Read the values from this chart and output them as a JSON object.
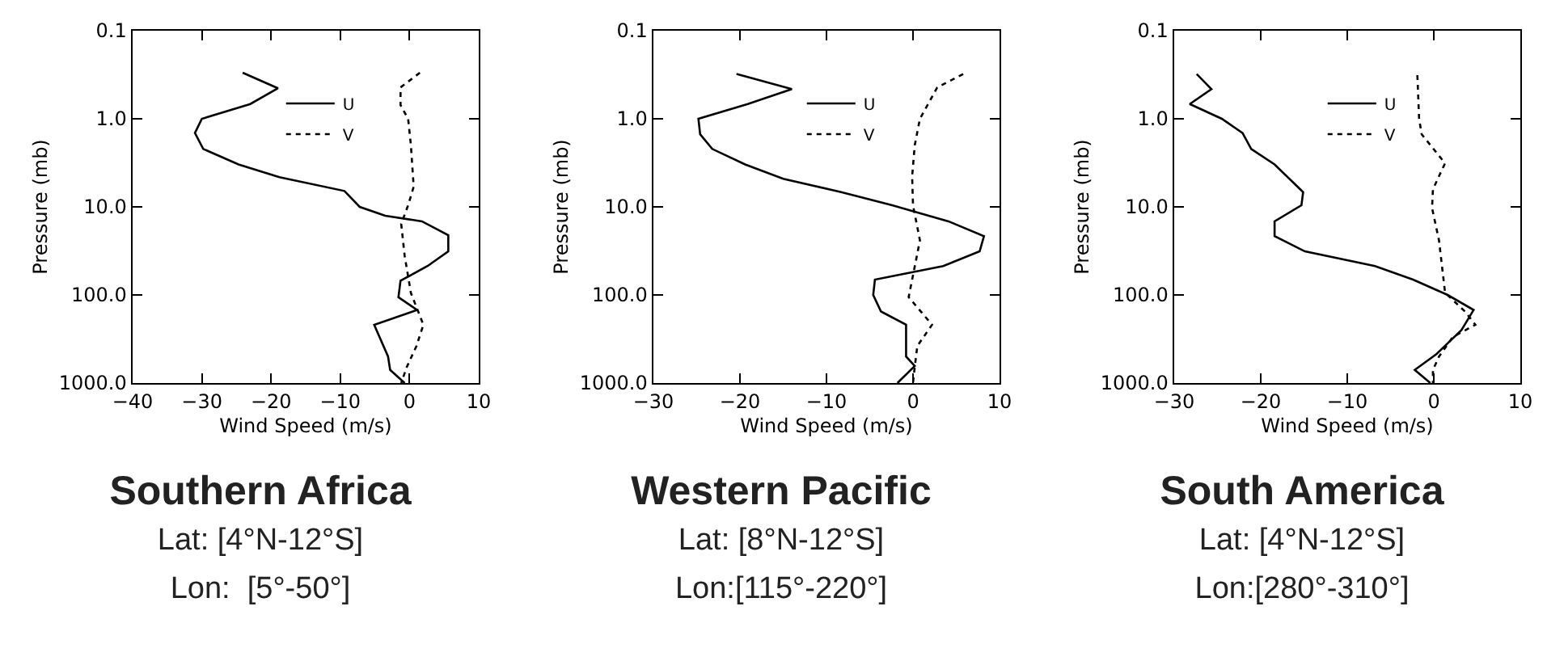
{
  "chart_data": [
    {
      "type": "line",
      "title": "Southern Africa",
      "subtitle": "Lat: [4°N-12°S]",
      "annotations": [
        "Lon:  [5°-50°]"
      ],
      "xlabel": "Wind Speed (m/s)",
      "ylabel": "Pressure (mb)",
      "log": "y",
      "xlim": [
        -40,
        10
      ],
      "xticks": [
        -40,
        -30,
        -20,
        -10,
        0,
        10
      ],
      "ylim": [
        1000,
        0.1
      ],
      "yticks": [
        {
          "value": 0.1,
          "label": "0.1"
        },
        {
          "value": 1,
          "label": "1.0"
        },
        {
          "value": 10,
          "label": "10.0"
        },
        {
          "value": 100,
          "label": "100.0"
        },
        {
          "value": 1000,
          "label": "1000.0"
        }
      ],
      "grid": false,
      "legend": "top right",
      "marker": "none",
      "series": [
        {
          "name": "U",
          "color": "#000000",
          "line_style": "solid",
          "x": [
            -24.1,
            -19.0,
            -23.0,
            -30.0,
            -31.0,
            -29.8,
            -24.7,
            -18.8,
            -9.4,
            -7.2,
            -3.5,
            1.8,
            5.6,
            5.6,
            2.6,
            -1.3,
            -1.6,
            1.1,
            -5.1,
            -3.1,
            -2.8,
            -0.7
          ],
          "values": [
            0.3,
            0.45,
            0.68,
            1.0,
            1.45,
            2.2,
            3.3,
            4.6,
            6.6,
            10,
            12.6,
            14.6,
            21,
            32,
            47,
            69,
            106,
            148,
            218,
            500,
            710,
            1000
          ]
        },
        {
          "name": "V",
          "color": "#000000",
          "line_style": "dotted",
          "x": [
            1.5,
            -1.3,
            -1.3,
            -0.2,
            0.2,
            0.6,
            -0.2,
            -1.2,
            -0.7,
            0.2,
            2.0,
            1.0,
            -0.4,
            -1.2
          ],
          "values": [
            0.3,
            0.44,
            0.7,
            1.0,
            2.0,
            5.9,
            9.6,
            15.6,
            36,
            95,
            218,
            380,
            660,
            1000
          ]
        }
      ]
    },
    {
      "type": "line",
      "title": "Western Pacific",
      "subtitle": "Lat: [8°N-12°S]",
      "annotations": [
        "Lon:[115°-220°]"
      ],
      "xlabel": "Wind Speed (m/s)",
      "ylabel": "Pressure (mb)",
      "log": "y",
      "xlim": [
        -30,
        10
      ],
      "xticks": [
        -30,
        -20,
        -10,
        0,
        10
      ],
      "ylim": [
        1000,
        0.1
      ],
      "yticks": [
        {
          "value": 0.1,
          "label": "0.1"
        },
        {
          "value": 1,
          "label": "1.0"
        },
        {
          "value": 10,
          "label": "10.0"
        },
        {
          "value": 100,
          "label": "100.0"
        },
        {
          "value": 1000,
          "label": "1000.0"
        }
      ],
      "grid": false,
      "legend": "top right",
      "marker": "none",
      "series": [
        {
          "name": "U",
          "color": "#000000",
          "line_style": "solid",
          "x": [
            -20.4,
            -14.0,
            -19.1,
            -24.8,
            -24.6,
            -23.2,
            -19.4,
            -15.0,
            -8.3,
            -2.4,
            4.1,
            8.2,
            7.7,
            3.5,
            -4.4,
            -4.6,
            -3.7,
            -0.8,
            -0.8,
            0.2,
            -1.8
          ],
          "values": [
            0.31,
            0.46,
            0.68,
            1.0,
            1.5,
            2.2,
            3.3,
            4.8,
            6.8,
            9.6,
            14.6,
            21.5,
            32,
            47,
            67,
            100,
            154,
            218,
            500,
            640,
            1000
          ]
        },
        {
          "name": "V",
          "color": "#000000",
          "line_style": "dotted",
          "x": [
            5.8,
            2.8,
            0.8,
            0.2,
            -0.1,
            0,
            0.8,
            -0.1,
            -0.5,
            2.2,
            0.5,
            0.2,
            0
          ],
          "values": [
            0.31,
            0.44,
            1.0,
            2.0,
            4.5,
            9.6,
            24,
            67,
            106,
            218,
            380,
            660,
            1000
          ]
        }
      ]
    },
    {
      "type": "line",
      "title": "South America",
      "subtitle": "Lat: [4°N-12°S]",
      "annotations": [
        "Lon:[280°-310°]"
      ],
      "xlabel": "Wind Speed (m/s)",
      "ylabel": "Pressure (mb)",
      "log": "y",
      "xlim": [
        -30,
        10
      ],
      "xticks": [
        -30,
        -20,
        -10,
        0,
        10
      ],
      "ylim": [
        1000,
        0.1
      ],
      "yticks": [
        {
          "value": 0.1,
          "label": "0.1"
        },
        {
          "value": 1,
          "label": "1.0"
        },
        {
          "value": 10,
          "label": "10.0"
        },
        {
          "value": 100,
          "label": "100.0"
        },
        {
          "value": 1000,
          "label": "1000.0"
        }
      ],
      "grid": false,
      "legend": "top right",
      "marker": "none",
      "series": [
        {
          "name": "U",
          "color": "#000000",
          "line_style": "solid",
          "x": [
            -27.4,
            -25.7,
            -28.2,
            -24.5,
            -22.1,
            -21.1,
            -18.4,
            -15.1,
            -15.3,
            -18.4,
            -18.4,
            -14.9,
            -6.8,
            -2.4,
            1.6,
            4.6,
            3.2,
            0.3,
            -2.2,
            -0.4
          ],
          "values": [
            0.31,
            0.46,
            0.68,
            1.0,
            1.45,
            2.2,
            3.3,
            6.8,
            9.6,
            14.6,
            21.5,
            32,
            47,
            67,
            100,
            148,
            250,
            470,
            710,
            1000
          ]
        },
        {
          "name": "V",
          "color": "#000000",
          "line_style": "dotted",
          "x": [
            -1.9,
            -1.7,
            -1.4,
            1.3,
            -0.1,
            -0.2,
            0.6,
            1.3,
            3.6,
            4.8,
            2.2,
            0.6,
            -0.1,
            -0.1
          ],
          "values": [
            0.32,
            1.0,
            1.5,
            3.2,
            6.3,
            10.3,
            24,
            94,
            154,
            218,
            300,
            500,
            710,
            1000
          ]
        }
      ]
    }
  ]
}
